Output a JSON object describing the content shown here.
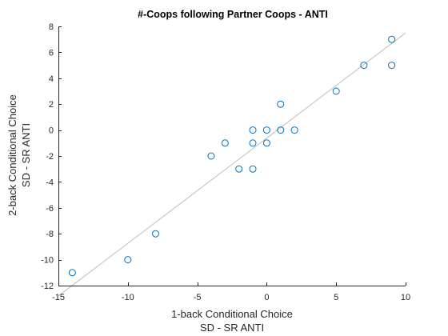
{
  "chart_data": {
    "type": "scatter",
    "title": "#-Coops following Partner Coops - ANTI",
    "xlabel": [
      "1-back Conditional Choice",
      "SD - SR ANTI"
    ],
    "ylabel": [
      "2-back Conditional Choice",
      "SD - SR ANTI"
    ],
    "xlim": [
      -15,
      10
    ],
    "ylim": [
      -12,
      8
    ],
    "xticks": [
      -15,
      -10,
      -5,
      0,
      5,
      10
    ],
    "yticks": [
      -12,
      -10,
      -8,
      -6,
      -4,
      -2,
      0,
      2,
      4,
      6,
      8
    ],
    "xtick_labels": [
      "-15",
      "-10",
      "-5",
      "0",
      "5",
      "10"
    ],
    "ytick_labels": [
      "-12",
      "-10",
      "-8",
      "-6",
      "-4",
      "-2",
      "0",
      "2",
      "4",
      "6",
      "8"
    ],
    "grid": false,
    "marker": "circle-open",
    "series": [
      {
        "x": [
          -14,
          -10,
          -8,
          -4,
          -3,
          -2,
          -1,
          -1,
          -1,
          0,
          0,
          1,
          1,
          2,
          5,
          7,
          9,
          9
        ],
        "y": [
          -11,
          -10,
          -8,
          -2,
          -1,
          -3,
          0,
          -1,
          -3,
          0,
          -1,
          0,
          2,
          0,
          3,
          5,
          7,
          5
        ]
      }
    ],
    "fit_line": {
      "x": [
        -15,
        10
      ],
      "y": [
        -12.8,
        7.5
      ]
    },
    "colors": {
      "marker": "#0072BD",
      "fit_line": "#bdbdbd",
      "axis": "#262626"
    }
  }
}
